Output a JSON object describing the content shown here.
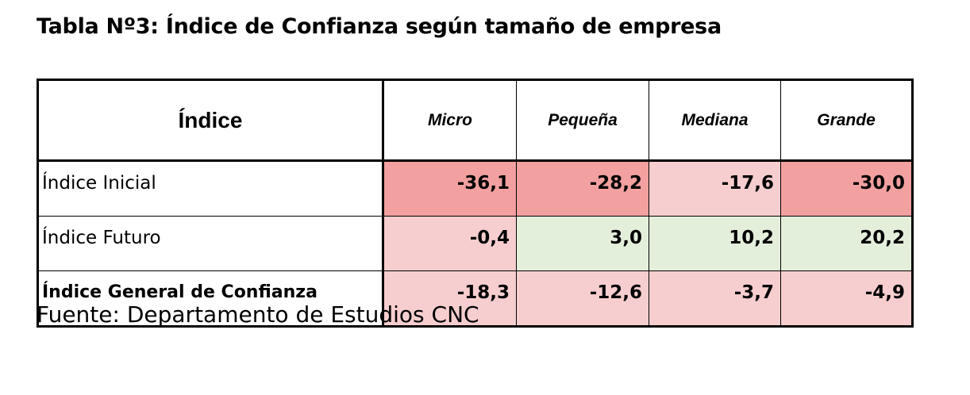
{
  "title": "Tabla Nº3: Índice de Confianza según tamaño de empresa",
  "table": {
    "header": {
      "index_label": "Índice",
      "columns": [
        "Micro",
        "Pequeña",
        "Mediana",
        "Grande"
      ]
    },
    "rows": [
      {
        "label": "Índice Inicial",
        "bold": false,
        "values": [
          "-36,1",
          "-28,2",
          "-17,6",
          "-30,0"
        ],
        "cell_colors": [
          "#f2a0a0",
          "#f2a0a0",
          "#f7cecf",
          "#f2a0a0"
        ]
      },
      {
        "label": "Índice Futuro",
        "bold": false,
        "values": [
          "-0,4",
          "3,0",
          "10,2",
          "20,2"
        ],
        "cell_colors": [
          "#f7cecf",
          "#e3efdb",
          "#e3efdb",
          "#e3efdb"
        ]
      },
      {
        "label": "Índice General de Confianza",
        "bold": true,
        "values": [
          "-18,3",
          "-12,6",
          "-3,7",
          "-4,9"
        ],
        "cell_colors": [
          "#f7cecf",
          "#f7cecf",
          "#f7cecf",
          "#f7cecf"
        ]
      }
    ]
  },
  "source": "Fuente: Departamento de Estudios CNC"
}
